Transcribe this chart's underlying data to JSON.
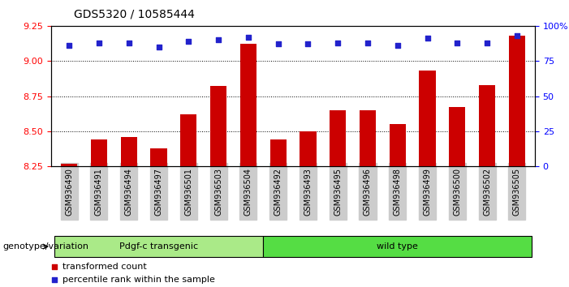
{
  "title": "GDS5320 / 10585444",
  "categories": [
    "GSM936490",
    "GSM936491",
    "GSM936494",
    "GSM936497",
    "GSM936501",
    "GSM936503",
    "GSM936504",
    "GSM936492",
    "GSM936493",
    "GSM936495",
    "GSM936496",
    "GSM936498",
    "GSM936499",
    "GSM936500",
    "GSM936502",
    "GSM936505"
  ],
  "bar_values": [
    8.27,
    8.44,
    8.46,
    8.38,
    8.62,
    8.82,
    9.12,
    8.44,
    8.5,
    8.65,
    8.65,
    8.55,
    8.93,
    8.67,
    8.83,
    9.18
  ],
  "percentile_values": [
    86,
    88,
    88,
    85,
    89,
    90,
    92,
    87,
    87,
    88,
    88,
    86,
    91,
    88,
    88,
    93
  ],
  "group1_label": "Pdgf-c transgenic",
  "group2_label": "wild type",
  "group1_count": 7,
  "group2_count": 9,
  "ylim_left": [
    8.25,
    9.25
  ],
  "ylim_right": [
    0,
    100
  ],
  "yticks_left": [
    8.25,
    8.5,
    8.75,
    9.0,
    9.25
  ],
  "yticks_right": [
    0,
    25,
    50,
    75,
    100
  ],
  "ytick_labels_right": [
    "0",
    "25",
    "50",
    "75",
    "100%"
  ],
  "bar_color": "#cc0000",
  "percentile_color": "#2222cc",
  "group1_bg": "#aaea88",
  "group2_bg": "#55dd44",
  "tick_label_bg": "#cccccc",
  "legend_bar_label": "transformed count",
  "legend_pct_label": "percentile rank within the sample",
  "genotype_label": "genotype/variation",
  "gridlines": [
    9.0,
    8.75,
    8.5
  ]
}
